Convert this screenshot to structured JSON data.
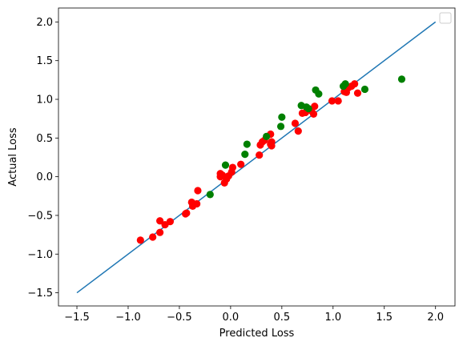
{
  "chart_data": {
    "type": "scatter",
    "title": "",
    "xlabel": "Predicted Loss",
    "ylabel": "Actual Loss",
    "xlim": [
      -1.68,
      2.19
    ],
    "ylim": [
      -1.67,
      2.18
    ],
    "xticks": [
      -1.5,
      -1.0,
      -0.5,
      0.0,
      0.5,
      1.0,
      1.5,
      2.0
    ],
    "xtick_labels": [
      "−1.5",
      "−1.0",
      "−0.5",
      "0.0",
      "0.5",
      "1.0",
      "1.5",
      "2.0"
    ],
    "yticks": [
      -1.5,
      -1.0,
      -0.5,
      0.0,
      0.5,
      1.0,
      1.5,
      2.0
    ],
    "ytick_labels": [
      "−1.5",
      "−1.0",
      "−0.5",
      "0.0",
      "0.5",
      "1.0",
      "1.5",
      "2.0"
    ],
    "grid": false,
    "legend": {
      "position": "top-right",
      "entries": []
    },
    "colors": {
      "line": "#1f77b4",
      "series_red": "#ff0000",
      "series_green": "#008000",
      "axes": "#000000"
    },
    "line": {
      "x": [
        -1.5,
        2.0
      ],
      "y": [
        -1.5,
        2.0
      ]
    },
    "series": [
      {
        "color": "red",
        "points": [
          [
            -0.88,
            -0.82
          ],
          [
            -0.76,
            -0.78
          ],
          [
            -0.69,
            -0.57
          ],
          [
            -0.69,
            -0.72
          ],
          [
            -0.64,
            -0.62
          ],
          [
            -0.59,
            -0.58
          ],
          [
            -0.44,
            -0.48
          ],
          [
            -0.43,
            -0.47
          ],
          [
            -0.38,
            -0.33
          ],
          [
            -0.37,
            -0.38
          ],
          [
            -0.33,
            -0.35
          ],
          [
            -0.32,
            -0.18
          ],
          [
            -0.1,
            0.0
          ],
          [
            -0.1,
            0.04
          ],
          [
            -0.08,
            0.02
          ],
          [
            -0.06,
            -0.08
          ],
          [
            -0.04,
            -0.03
          ],
          [
            -0.02,
            0.01
          ],
          [
            0.01,
            0.06
          ],
          [
            0.02,
            0.12
          ],
          [
            0.1,
            0.16
          ],
          [
            0.28,
            0.28
          ],
          [
            0.29,
            0.41
          ],
          [
            0.31,
            0.45
          ],
          [
            0.33,
            0.47
          ],
          [
            0.39,
            0.42
          ],
          [
            0.39,
            0.55
          ],
          [
            0.4,
            0.45
          ],
          [
            0.4,
            0.4
          ],
          [
            0.63,
            0.69
          ],
          [
            0.66,
            0.59
          ],
          [
            0.7,
            0.82
          ],
          [
            0.73,
            0.83
          ],
          [
            0.75,
            0.86
          ],
          [
            0.77,
            0.87
          ],
          [
            0.79,
            0.85
          ],
          [
            0.81,
            0.81
          ],
          [
            0.82,
            0.91
          ],
          [
            0.99,
            0.98
          ],
          [
            1.05,
            0.98
          ],
          [
            1.11,
            1.1
          ],
          [
            1.13,
            1.09
          ],
          [
            1.15,
            1.15
          ],
          [
            1.18,
            1.17
          ],
          [
            1.21,
            1.2
          ],
          [
            1.24,
            1.08
          ]
        ]
      },
      {
        "color": "green",
        "points": [
          [
            -0.2,
            -0.23
          ],
          [
            -0.05,
            0.15
          ],
          [
            0.14,
            0.29
          ],
          [
            0.16,
            0.42
          ],
          [
            0.35,
            0.52
          ],
          [
            0.49,
            0.65
          ],
          [
            0.5,
            0.77
          ],
          [
            0.69,
            0.92
          ],
          [
            0.74,
            0.9
          ],
          [
            0.76,
            0.88
          ],
          [
            0.83,
            1.12
          ],
          [
            0.86,
            1.07
          ],
          [
            1.1,
            1.17
          ],
          [
            1.12,
            1.2
          ],
          [
            1.31,
            1.13
          ],
          [
            1.67,
            1.26
          ]
        ]
      }
    ]
  }
}
